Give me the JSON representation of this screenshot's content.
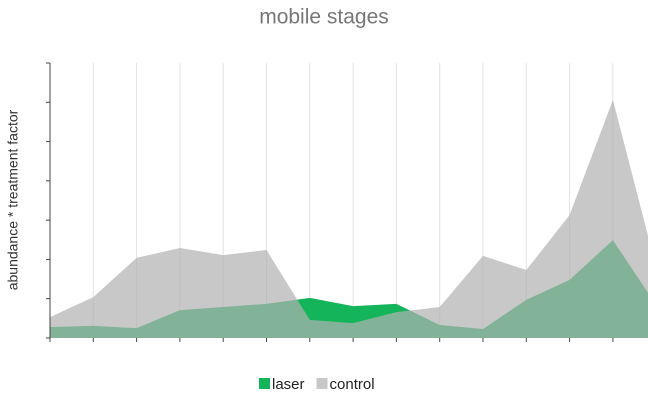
{
  "chart_data": {
    "type": "area",
    "title": "mobile stages",
    "y_label": "abundance * treatment factor",
    "categories": [
      null,
      null,
      null,
      null,
      null,
      null,
      null,
      null,
      null,
      null,
      null,
      null,
      null,
      null,
      null
    ],
    "series": [
      {
        "name": "control",
        "color": "#b0b0b0",
        "values": [
          0.53,
          1.04,
          2.04,
          2.29,
          2.11,
          2.24,
          0.46,
          0.38,
          0.66,
          0.79,
          2.09,
          1.73,
          3.13,
          6.06,
          1.8
        ]
      },
      {
        "name": "laser",
        "color": "#14b45a",
        "values": [
          0.28,
          0.31,
          0.25,
          0.71,
          0.79,
          0.87,
          1.02,
          0.81,
          0.87,
          0.33,
          0.23,
          0.97,
          1.48,
          2.49,
          0.84
        ]
      }
    ],
    "ylim": [
      0,
      7
    ],
    "yticks": [
      0,
      1,
      2,
      3,
      4,
      5,
      6,
      7
    ],
    "grid": true,
    "legend": "bottom"
  }
}
